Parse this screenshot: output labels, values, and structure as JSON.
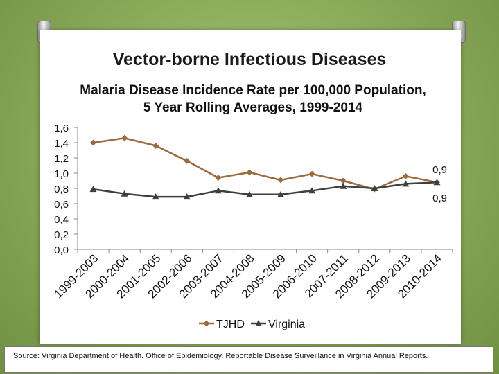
{
  "slide": {
    "title": "Vector-borne Infectious Diseases",
    "subtitle": "Malaria Disease  Incidence Rate per 100,000 Population,  5 Year Rolling Averages, 1999-2014",
    "source": "Source: Virginia Department of Health. Office of Epidemiology. Reportable Disease Surveillance in Virginia Annual Reports."
  },
  "chart_data": {
    "type": "line",
    "title": "Malaria Disease  Incidence Rate per 100,000 Population,  5 Year Rolling Averages, 1999-2014",
    "xlabel": "",
    "ylabel": "",
    "ylim": [
      0,
      1.6
    ],
    "yticks": [
      "0,0",
      "0,2",
      "0,4",
      "0,6",
      "0,8",
      "1,0",
      "1,2",
      "1,4",
      "1,6"
    ],
    "categories": [
      "1999-2003",
      "2000-2004",
      "2001-2005",
      "2002-2006",
      "2003-2007",
      "2004-2008",
      "2005-2009",
      "2006-2010",
      "2007-2011",
      "2008-2012",
      "2009-2013",
      "2010-2014"
    ],
    "series": [
      {
        "name": "TJHD",
        "marker": "diamond",
        "color": "#9b6b3e",
        "values": [
          1.4,
          1.46,
          1.36,
          1.16,
          0.94,
          1.01,
          0.91,
          0.99,
          0.9,
          0.79,
          0.96,
          0.88
        ],
        "end_label": "0,9"
      },
      {
        "name": "Virginia",
        "marker": "triangle",
        "color": "#3f3f3f",
        "values": [
          0.79,
          0.73,
          0.69,
          0.69,
          0.77,
          0.72,
          0.72,
          0.77,
          0.83,
          0.8,
          0.86,
          0.88
        ],
        "end_label": "0,9"
      }
    ],
    "legend": "bottom"
  }
}
